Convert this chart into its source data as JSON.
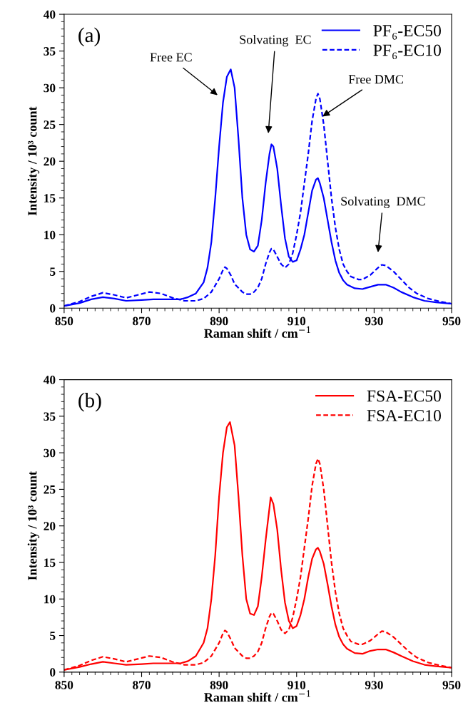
{
  "chart_data": [
    {
      "type": "line",
      "xlabel": "Raman shift / cm$^{−1}$",
      "ylabel": "Intensity / 10³ count",
      "xlim": [
        850,
        950
      ],
      "ylim": [
        0,
        40
      ],
      "xticks": [
        850,
        870,
        890,
        910,
        930,
        950
      ],
      "yticks": [
        0,
        5,
        10,
        15,
        20,
        25,
        30,
        35,
        40
      ],
      "legend": "top right",
      "grid": false,
      "annotations": [
        "(a)",
        "Free EC",
        "Solvating  EC",
        {
          "text": "Free DMC",
          "x": 916.7,
          "y": 26.1
        },
        "Solvating  DMC"
      ],
      "series": [
        {
          "name": "PF₆-EC50",
          "color": "#0000ff",
          "line_style": "solid",
          "x": [
            850,
            854,
            857,
            860,
            863,
            866,
            870,
            873,
            877,
            880,
            882,
            884,
            886,
            887,
            888,
            889,
            890,
            891,
            892,
            893,
            894,
            895,
            896,
            897,
            898,
            899,
            900,
            901,
            902,
            903,
            903.5,
            904,
            905,
            906,
            907,
            908,
            909,
            910,
            911,
            912,
            913,
            914,
            915,
            915.5,
            916,
            917,
            918,
            919,
            920,
            921,
            922,
            923,
            925,
            927,
            929,
            931,
            933,
            935,
            937,
            940,
            943,
            946,
            950
          ],
          "values": [
            0.3,
            0.7,
            1.2,
            1.5,
            1.3,
            1.0,
            1.1,
            1.2,
            1.2,
            1.2,
            1.5,
            2.0,
            3.5,
            5.5,
            9,
            15,
            22,
            28,
            31.5,
            32.5,
            30,
            23,
            15,
            10,
            8,
            7.7,
            8.5,
            12,
            17,
            21,
            22.3,
            22,
            19,
            14,
            9.5,
            7,
            6.3,
            6.5,
            8,
            10,
            13,
            16,
            17.5,
            17.7,
            17,
            15,
            12,
            9,
            6.5,
            4.8,
            3.8,
            3.2,
            2.7,
            2.6,
            2.9,
            3.2,
            3.2,
            2.8,
            2.2,
            1.5,
            1.0,
            0.8,
            0.6
          ]
        },
        {
          "name": "PF₆-EC10",
          "color": "#0000ff",
          "line_style": "dashed",
          "x": [
            850,
            854,
            857,
            860,
            863,
            866,
            869,
            872,
            875,
            878,
            881,
            884,
            886,
            888,
            890,
            891,
            891.5,
            892,
            893,
            894,
            896,
            897,
            898,
            899,
            900,
            901,
            902,
            903,
            903.5,
            904,
            905,
            906,
            907,
            908,
            909,
            910,
            911,
            912,
            913,
            914,
            915,
            915.5,
            916,
            917,
            918,
            919,
            920,
            921,
            922,
            923,
            924,
            926,
            927,
            929,
            931,
            932,
            933,
            935,
            937,
            939,
            941,
            944,
            947,
            950
          ],
          "values": [
            0.3,
            0.9,
            1.6,
            2.1,
            1.8,
            1.4,
            1.8,
            2.2,
            2.0,
            1.4,
            1.0,
            1.0,
            1.3,
            2.2,
            4.0,
            5.2,
            5.6,
            5.4,
            4.5,
            3.3,
            2.2,
            1.9,
            1.9,
            2.2,
            2.8,
            4.0,
            6.0,
            7.6,
            8.1,
            8.0,
            7.0,
            6.0,
            5.5,
            6.0,
            7.5,
            10,
            13,
            17,
            21,
            25.5,
            28.5,
            29.2,
            28.5,
            25,
            20,
            15,
            11,
            8,
            6,
            5,
            4.3,
            3.9,
            3.9,
            4.5,
            5.5,
            5.9,
            5.8,
            5.0,
            3.9,
            2.8,
            2.0,
            1.3,
            0.9,
            0.6
          ]
        }
      ]
    },
    {
      "type": "line",
      "xlabel": "Raman shift / cm$^{−1}$",
      "ylabel": "Intensity / 10³ count",
      "xlim": [
        850,
        950
      ],
      "ylim": [
        0,
        40
      ],
      "xticks": [
        850,
        870,
        890,
        910,
        930,
        950
      ],
      "yticks": [
        0,
        5,
        10,
        15,
        20,
        25,
        30,
        35,
        40
      ],
      "legend": "top right",
      "grid": false,
      "annotations": [
        "(b)"
      ],
      "series": [
        {
          "name": "FSA-EC50",
          "color": "#ff0000",
          "line_style": "solid",
          "x": [
            850,
            854,
            857,
            860,
            863,
            866,
            870,
            873,
            877,
            880,
            882,
            884,
            886,
            887,
            888,
            889,
            890,
            891,
            892,
            892.8,
            894,
            895,
            896,
            897,
            898,
            899,
            900,
            901,
            902,
            903,
            903.3,
            904,
            905,
            906,
            907,
            908,
            909,
            910,
            911,
            912,
            913,
            914,
            915,
            915.5,
            916,
            917,
            918,
            919,
            920,
            921,
            922,
            923,
            925,
            927,
            929,
            931,
            933,
            935,
            937,
            940,
            943,
            946,
            950
          ],
          "values": [
            0.3,
            0.7,
            1.1,
            1.4,
            1.2,
            1.0,
            1.1,
            1.2,
            1.2,
            1.2,
            1.5,
            2.2,
            4.0,
            6,
            10,
            16,
            24,
            30,
            33.5,
            34.2,
            31,
            24,
            16,
            10,
            8,
            7.8,
            9,
            13,
            18,
            22.5,
            23.9,
            23,
            19.5,
            14,
            9.5,
            7,
            6,
            6.3,
            7.8,
            10,
            13,
            15.5,
            16.8,
            17,
            16.5,
            14.8,
            12,
            9,
            6.5,
            4.8,
            3.8,
            3.2,
            2.6,
            2.5,
            2.9,
            3.1,
            3.1,
            2.7,
            2.2,
            1.5,
            1.0,
            0.8,
            0.6
          ]
        },
        {
          "name": "FSA-EC10",
          "color": "#ff0000",
          "line_style": "dashed",
          "x": [
            850,
            854,
            857,
            860,
            863,
            866,
            869,
            872,
            875,
            878,
            881,
            884,
            886,
            888,
            890,
            891,
            891.5,
            892,
            893,
            894,
            896,
            897,
            898,
            899,
            900,
            901,
            902,
            903,
            903.5,
            904,
            905,
            906,
            907,
            908,
            909,
            910,
            911,
            912,
            913,
            914,
            915,
            915.5,
            916,
            917,
            918,
            919,
            920,
            921,
            922,
            923,
            924,
            926,
            927,
            929,
            931,
            932,
            933,
            935,
            937,
            939,
            941,
            944,
            947,
            950
          ],
          "values": [
            0.3,
            0.9,
            1.6,
            2.1,
            1.8,
            1.4,
            1.8,
            2.2,
            2.0,
            1.4,
            1.0,
            1.0,
            1.3,
            2.2,
            4.0,
            5.3,
            5.7,
            5.5,
            4.5,
            3.3,
            2.2,
            1.9,
            1.9,
            2.2,
            2.8,
            4.0,
            6.0,
            7.6,
            8.1,
            8.0,
            7.0,
            5.8,
            5.3,
            5.8,
            7.5,
            10,
            13,
            17,
            21,
            25.5,
            28.5,
            29.2,
            28.5,
            25,
            20,
            15,
            11,
            8,
            6,
            5,
            4.2,
            3.8,
            3.8,
            4.3,
            5.2,
            5.6,
            5.5,
            4.8,
            3.8,
            2.8,
            2.0,
            1.3,
            0.9,
            0.6
          ]
        }
      ]
    }
  ]
}
